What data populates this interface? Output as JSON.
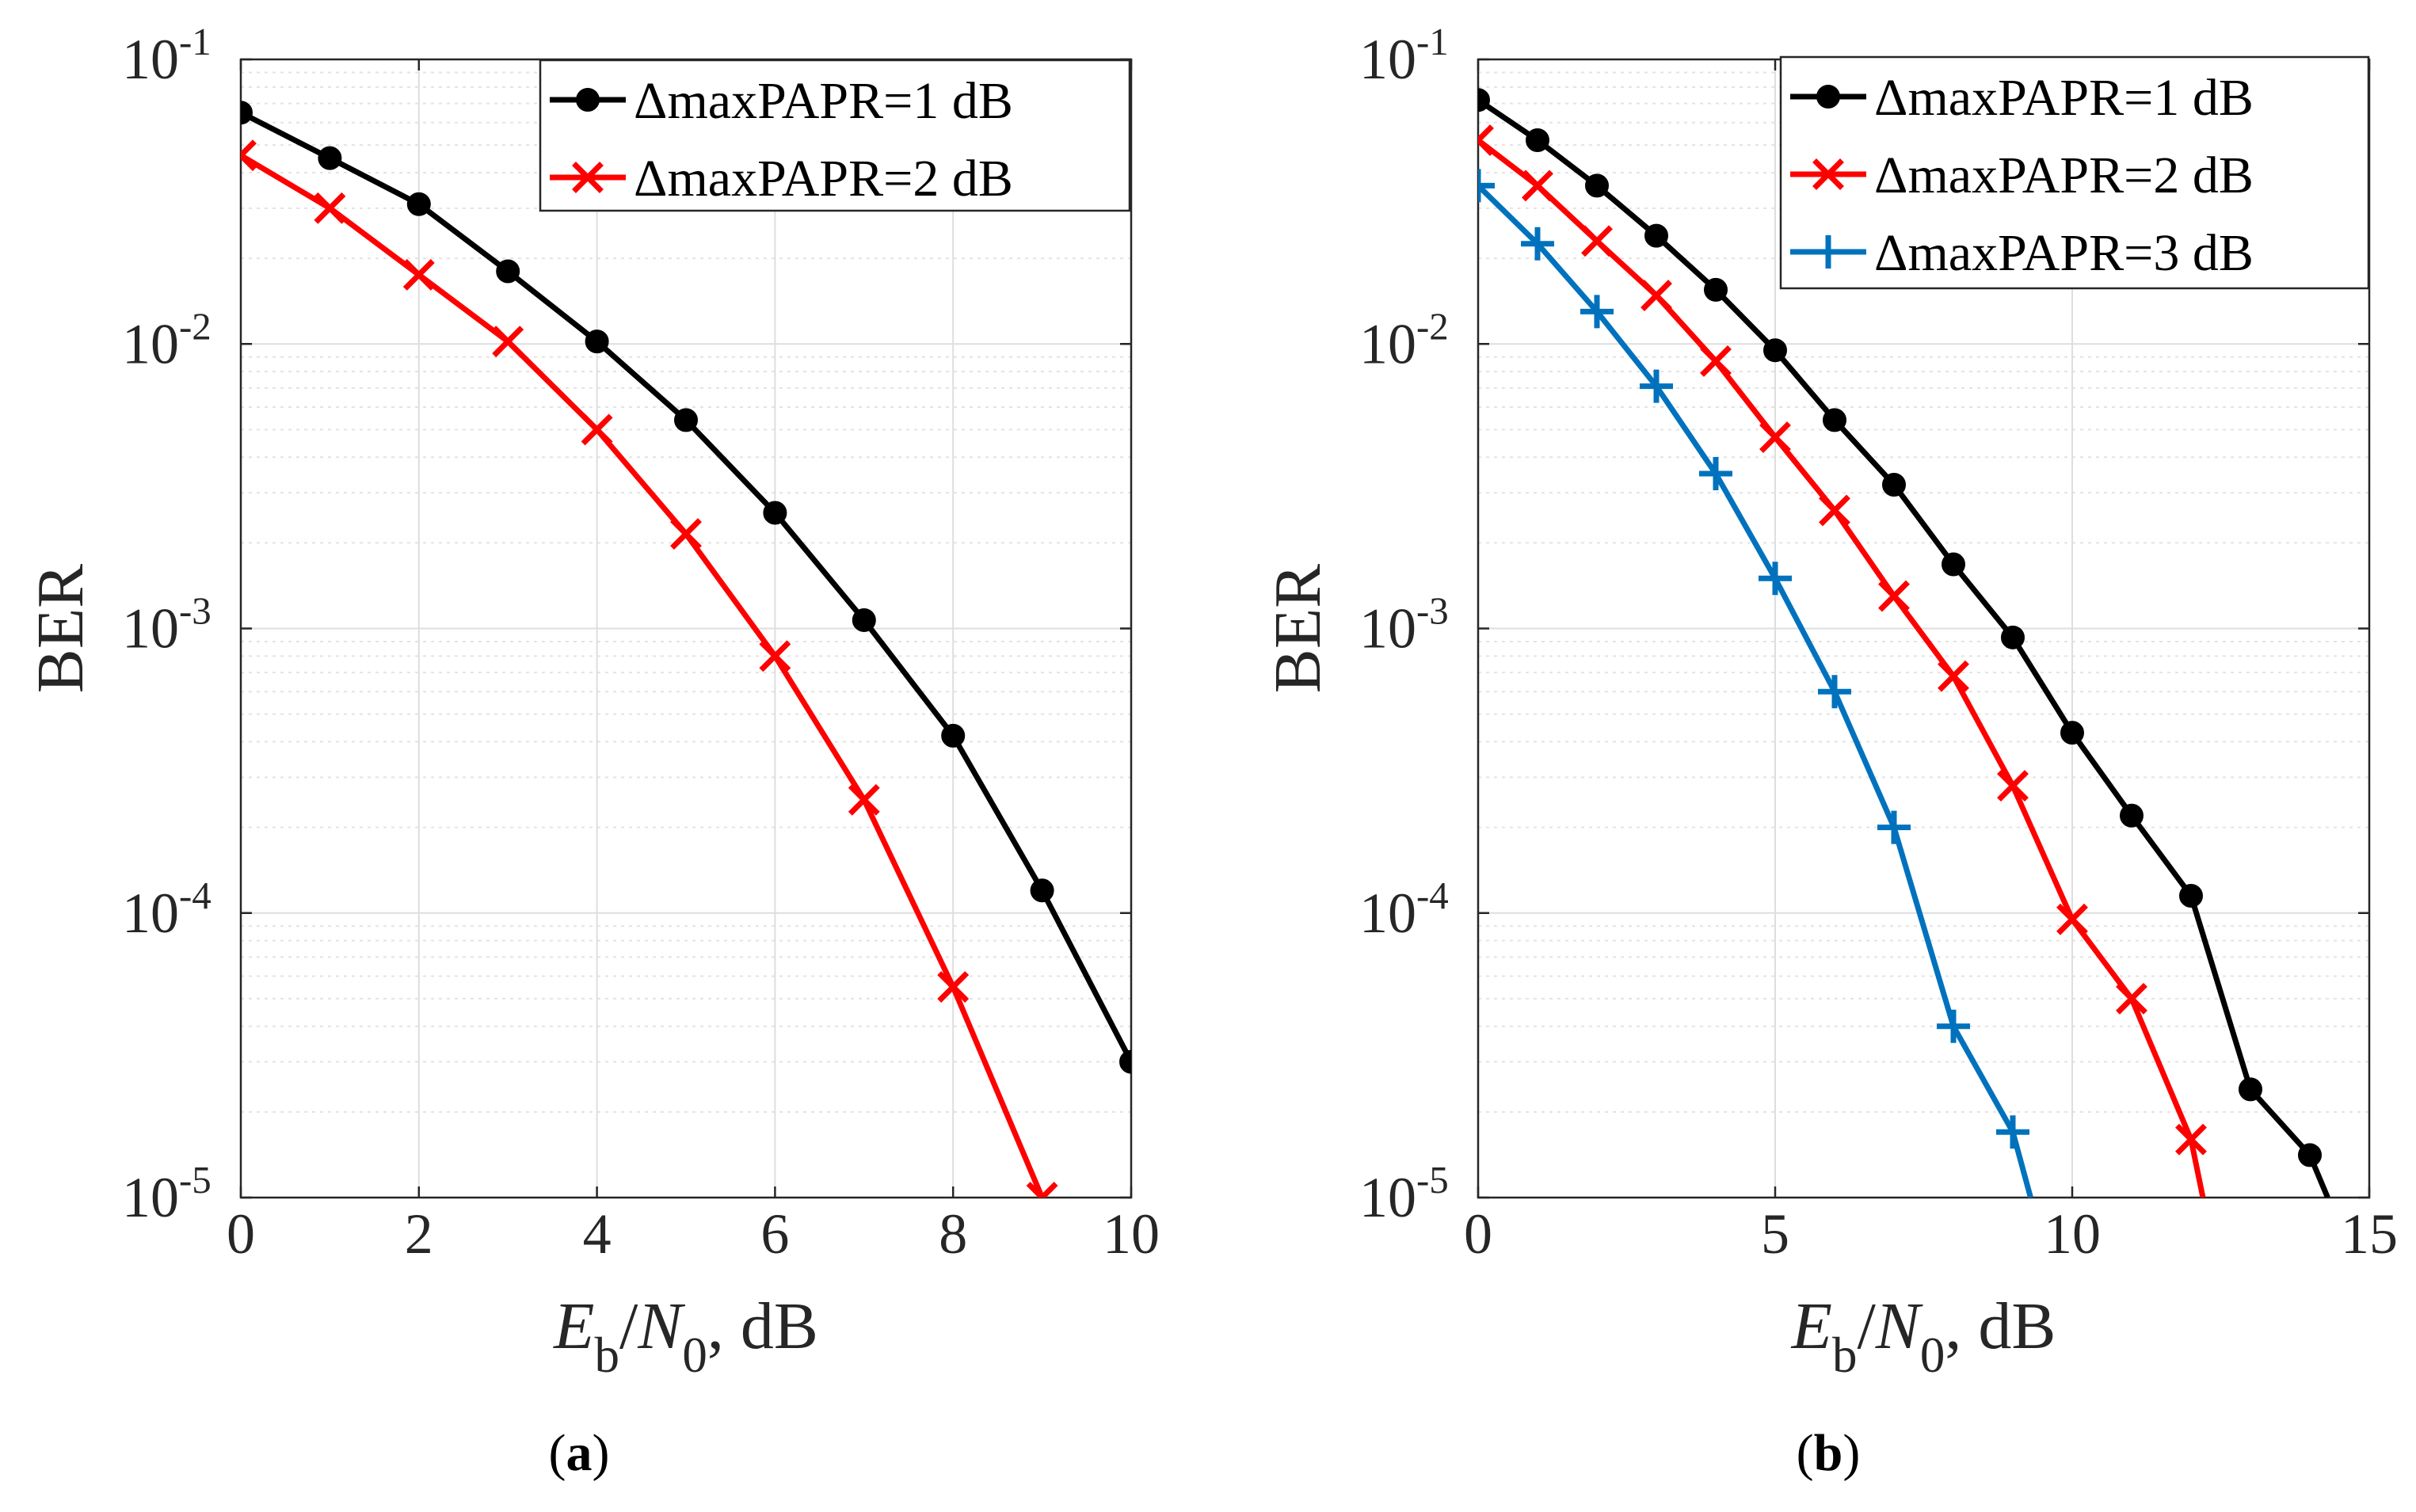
{
  "chart_data": [
    {
      "type": "line",
      "panel_label": "a",
      "xlabel": {
        "e": "E",
        "b": "b",
        "slash": "/",
        "n": "N",
        "zero": "0",
        "rest": ", dB"
      },
      "ylabel": "BER",
      "xscale": "linear",
      "yscale": "log",
      "xlim": [
        0,
        10
      ],
      "ylim": [
        1e-05,
        0.1
      ],
      "xticks": [
        0,
        2,
        4,
        6,
        8,
        10
      ],
      "yticks": [
        {
          "value": 0.1,
          "base": "10",
          "exp": "-1"
        },
        {
          "value": 0.01,
          "base": "10",
          "exp": "-2"
        },
        {
          "value": 0.001,
          "base": "10",
          "exp": "-3"
        },
        {
          "value": 0.0001,
          "base": "10",
          "exp": "-4"
        },
        {
          "value": 1e-05,
          "base": "10",
          "exp": "-5"
        }
      ],
      "grid": true,
      "legend_position": "top-right",
      "series": [
        {
          "name": "ΔmaxPAPR=1 dB",
          "color": "#000000",
          "marker": "dot",
          "x": [
            0,
            1,
            2,
            3,
            4,
            5,
            6,
            7,
            8,
            9,
            10
          ],
          "y": [
            0.065,
            0.045,
            0.031,
            0.018,
            0.0102,
            0.0054,
            0.00255,
            0.00107,
            0.00042,
            0.00012,
            3e-05
          ]
        },
        {
          "name": "ΔmaxPAPR=2 dB",
          "color": "#ff0000",
          "marker": "x",
          "x": [
            0,
            1,
            2,
            3,
            4,
            5,
            6,
            7,
            8,
            9
          ],
          "y": [
            0.046,
            0.03,
            0.0175,
            0.0102,
            0.005,
            0.00215,
            0.0008,
            0.00025,
            5.5e-05,
            1e-05
          ]
        }
      ]
    },
    {
      "type": "line",
      "panel_label": "b",
      "xlabel": {
        "e": "E",
        "b": "b",
        "slash": "/",
        "n": "N",
        "zero": "0",
        "rest": ", dB"
      },
      "ylabel": "BER",
      "xscale": "linear",
      "yscale": "log",
      "xlim": [
        0,
        15
      ],
      "ylim": [
        1e-05,
        0.1
      ],
      "xticks": [
        0,
        5,
        10,
        15
      ],
      "yticks": [
        {
          "value": 0.1,
          "base": "10",
          "exp": "-1"
        },
        {
          "value": 0.01,
          "base": "10",
          "exp": "-2"
        },
        {
          "value": 0.001,
          "base": "10",
          "exp": "-3"
        },
        {
          "value": 0.0001,
          "base": "10",
          "exp": "-4"
        },
        {
          "value": 1e-05,
          "base": "10",
          "exp": "-5"
        }
      ],
      "grid": true,
      "legend_position": "top-right",
      "series": [
        {
          "name": "ΔmaxPAPR=1 dB",
          "color": "#000000",
          "marker": "dot",
          "x": [
            0,
            1,
            2,
            3,
            4,
            5,
            6,
            7,
            8,
            9,
            10,
            11,
            12,
            13,
            14,
            14.3
          ],
          "y": [
            0.072,
            0.052,
            0.036,
            0.024,
            0.0155,
            0.0095,
            0.0054,
            0.0032,
            0.00168,
            0.00093,
            0.00043,
            0.00022,
            0.000115,
            2.4e-05,
            1.41e-05,
            1e-05
          ],
          "markers": [
            true,
            true,
            true,
            true,
            true,
            true,
            true,
            true,
            true,
            true,
            true,
            true,
            true,
            true,
            true,
            false
          ]
        },
        {
          "name": "ΔmaxPAPR=2 dB",
          "color": "#ff0000",
          "marker": "x",
          "x": [
            0,
            1,
            2,
            3,
            4,
            5,
            6,
            7,
            8,
            9,
            10,
            11,
            12,
            12.2
          ],
          "y": [
            0.052,
            0.036,
            0.023,
            0.0148,
            0.0087,
            0.0047,
            0.0026,
            0.0013,
            0.00068,
            0.00028,
            9.5e-05,
            5e-05,
            1.6e-05,
            1e-05
          ],
          "markers": [
            true,
            true,
            true,
            true,
            true,
            true,
            true,
            true,
            true,
            true,
            true,
            true,
            true,
            false
          ]
        },
        {
          "name": "ΔmaxPAPR=3 dB",
          "color": "#0072bd",
          "marker": "plus",
          "x": [
            0,
            1,
            2,
            3,
            4,
            5,
            6,
            7,
            8,
            9,
            9.3
          ],
          "y": [
            0.036,
            0.0225,
            0.013,
            0.0071,
            0.0035,
            0.0015,
            0.0006,
            0.0002,
            4e-05,
            1.7e-05,
            1e-05
          ],
          "markers": [
            true,
            true,
            true,
            true,
            true,
            true,
            true,
            true,
            true,
            true,
            false
          ]
        }
      ]
    }
  ]
}
